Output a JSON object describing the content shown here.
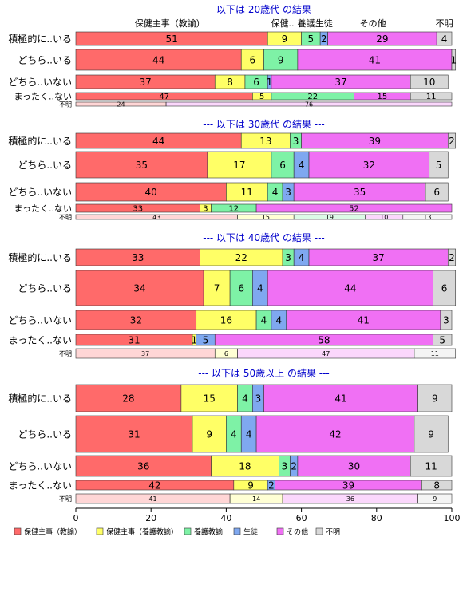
{
  "colors": {
    "保健主事（教諭）": "#ff6a6a",
    "保健主事（養護教諭）": "#ffff66",
    "養護教諭": "#7ef2a6",
    "生徒": "#7fa8f0",
    "その他": "#f070f4",
    "不明": "#d8d8d8",
    "title": "#0000cc"
  },
  "legend": {
    "placement": "bottom",
    "items": [
      "保健主事（教諭）",
      "保健主事（養護教諭）",
      "養護教諭",
      "生徒",
      "その他",
      "不明"
    ]
  },
  "column_headers": [
    {
      "label": "保健主事（教諭）",
      "at": 25
    },
    {
      "label": "保健..",
      "at": 55
    },
    {
      "label": "養護..",
      "at": 62
    },
    {
      "label": "生徒",
      "at": 66
    },
    {
      "label": "その他",
      "at": 79
    },
    {
      "label": "不明",
      "at": 98
    }
  ],
  "chart_data": {
    "type": "bar",
    "orientation": "horizontal-stacked-100",
    "xlim": [
      0,
      100
    ],
    "xticks": [
      0,
      20,
      40,
      60,
      80,
      100
    ],
    "grid": false,
    "series_names": [
      "保健主事（教諭）",
      "保健主事（養護教諭）",
      "養護教諭",
      "生徒",
      "その他",
      "不明"
    ],
    "panels": [
      {
        "title": "--- 以下は 20歳代 の結果 ---",
        "rows": [
          {
            "label": "積極的に..いる",
            "values": [
              51,
              9,
              5,
              2,
              29,
              4
            ]
          },
          {
            "label": "どちら..いる",
            "values": [
              44,
              6,
              9,
              0,
              41,
              1
            ]
          },
          {
            "label": "どちら..いない",
            "values": [
              37,
              8,
              6,
              1,
              37,
              10
            ]
          },
          {
            "label": "まったく..ない",
            "values": [
              47,
              5,
              22,
              0,
              15,
              11
            ]
          }
        ],
        "unknown_row": {
          "label": "不明",
          "values": [
            24,
            0,
            0,
            0,
            76,
            0
          ]
        }
      },
      {
        "title": "--- 以下は 30歳代 の結果 ---",
        "rows": [
          {
            "label": "積極的に..いる",
            "values": [
              44,
              13,
              3,
              0,
              39,
              2
            ]
          },
          {
            "label": "どちら..いる",
            "values": [
              35,
              17,
              6,
              4,
              32,
              5
            ]
          },
          {
            "label": "どちら..いない",
            "values": [
              40,
              11,
              4,
              3,
              35,
              6
            ]
          },
          {
            "label": "まったく..ない",
            "values": [
              33,
              3,
              12,
              0,
              52,
              0
            ]
          }
        ],
        "unknown_row": {
          "label": "不明",
          "values": [
            43,
            15,
            19,
            0,
            10,
            13
          ]
        }
      },
      {
        "title": "--- 以下は 40歳代 の結果 ---",
        "rows": [
          {
            "label": "積極的に..いる",
            "values": [
              33,
              22,
              3,
              4,
              37,
              2
            ]
          },
          {
            "label": "どちら..いる",
            "values": [
              34,
              7,
              6,
              4,
              44,
              6
            ]
          },
          {
            "label": "どちら..いない",
            "values": [
              32,
              16,
              4,
              4,
              41,
              3
            ]
          },
          {
            "label": "まったく..ない",
            "values": [
              31,
              1,
              0,
              5,
              58,
              5
            ]
          }
        ],
        "unknown_row": {
          "label": "不明",
          "values": [
            37,
            6,
            0,
            0,
            47,
            11
          ]
        }
      },
      {
        "title": "--- 以下は 50歳以上 の結果 ---",
        "rows": [
          {
            "label": "積極的に..いる",
            "values": [
              28,
              15,
              4,
              3,
              41,
              9
            ]
          },
          {
            "label": "どちら..いる",
            "values": [
              31,
              9,
              4,
              4,
              42,
              9
            ]
          },
          {
            "label": "どちら..いない",
            "values": [
              36,
              18,
              3,
              2,
              30,
              11
            ]
          },
          {
            "label": "まったく..ない",
            "values": [
              42,
              9,
              0,
              2,
              39,
              8
            ]
          }
        ],
        "unknown_row": {
          "label": "不明",
          "values": [
            41,
            14,
            0,
            0,
            36,
            9
          ]
        }
      }
    ]
  }
}
